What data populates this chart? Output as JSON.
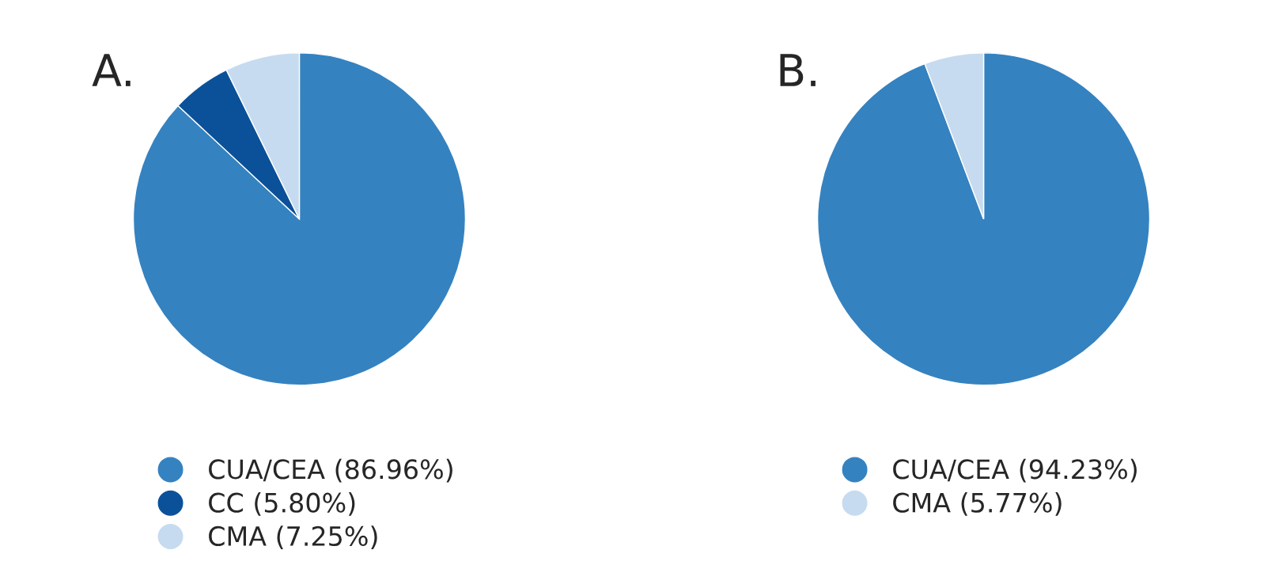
{
  "chart_data": [
    {
      "type": "pie",
      "title": "A.",
      "categories": [
        "CUA/CEA (86.96%)",
        "CC (5.80%)",
        "CMA (7.25%)"
      ],
      "values": [
        86.96,
        5.8,
        7.25
      ],
      "colors": [
        "#3582c0",
        "#0b519a",
        "#c6dbef"
      ],
      "legend": "bottom"
    },
    {
      "type": "pie",
      "title": "B.",
      "categories": [
        "CUA/CEA (94.23%)",
        "CMA (5.77%)"
      ],
      "values": [
        94.23,
        5.77
      ],
      "colors": [
        "#3582c0",
        "#c6dbef"
      ],
      "legend": "bottom"
    }
  ]
}
